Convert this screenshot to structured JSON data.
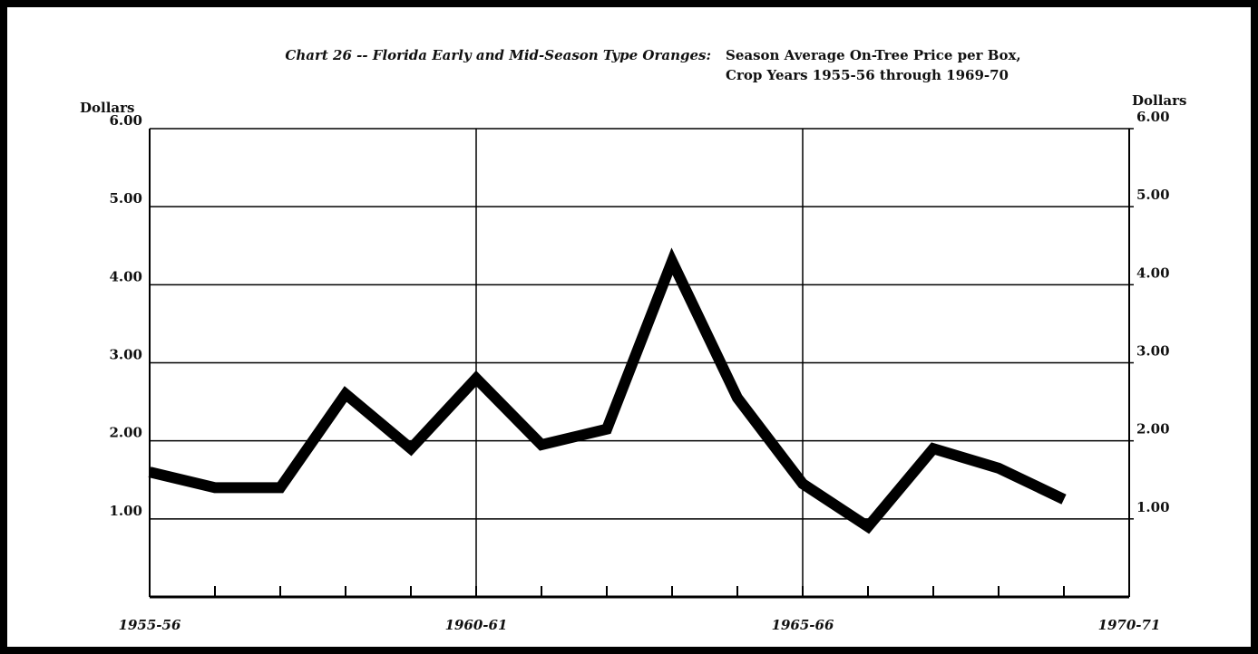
{
  "chart_data": {
    "type": "line",
    "title": "Chart 26 -- Florida Early and Mid-Season Type Oranges:",
    "subtitle": [
      "Season Average On-Tree Price per Box,",
      "Crop Years 1955-56 through 1969-70"
    ],
    "y_label": "Dollars",
    "y2_label": "Dollars",
    "x": [
      1955,
      1956,
      1957,
      1958,
      1959,
      1960,
      1961,
      1962,
      1963,
      1964,
      1965,
      1966,
      1967,
      1968,
      1969
    ],
    "series": [
      {
        "color": "#000000",
        "values": [
          1.6,
          1.4,
          1.4,
          2.6,
          1.9,
          2.8,
          1.95,
          2.15,
          4.3,
          2.55,
          1.45,
          0.9,
          1.9,
          1.65,
          1.25
        ]
      }
    ],
    "xlim": [
      1955,
      1970
    ],
    "xticks": [
      {
        "value": 1955,
        "label": "1955-56"
      },
      {
        "value": 1960,
        "label": "1960-61"
      },
      {
        "value": 1965,
        "label": "1965-66"
      },
      {
        "value": 1970,
        "label": "1970-71"
      }
    ],
    "ylim": [
      0,
      6
    ],
    "yticks": [
      {
        "value": 1,
        "label": "1.00"
      },
      {
        "value": 2,
        "label": "2.00"
      },
      {
        "value": 3,
        "label": "3.00"
      },
      {
        "value": 4,
        "label": "4.00"
      },
      {
        "value": 5,
        "label": "5.00"
      },
      {
        "value": 6,
        "label": "6.00"
      }
    ],
    "y2lim": [
      0,
      6
    ],
    "y2ticks": [
      {
        "value": 1,
        "label": "1.00"
      },
      {
        "value": 2,
        "label": "2.00"
      },
      {
        "value": 3,
        "label": "3.00"
      },
      {
        "value": 4,
        "label": "4.00"
      },
      {
        "value": 5,
        "label": "5.00"
      },
      {
        "value": 6,
        "label": "6.00"
      }
    ],
    "grid": true
  }
}
